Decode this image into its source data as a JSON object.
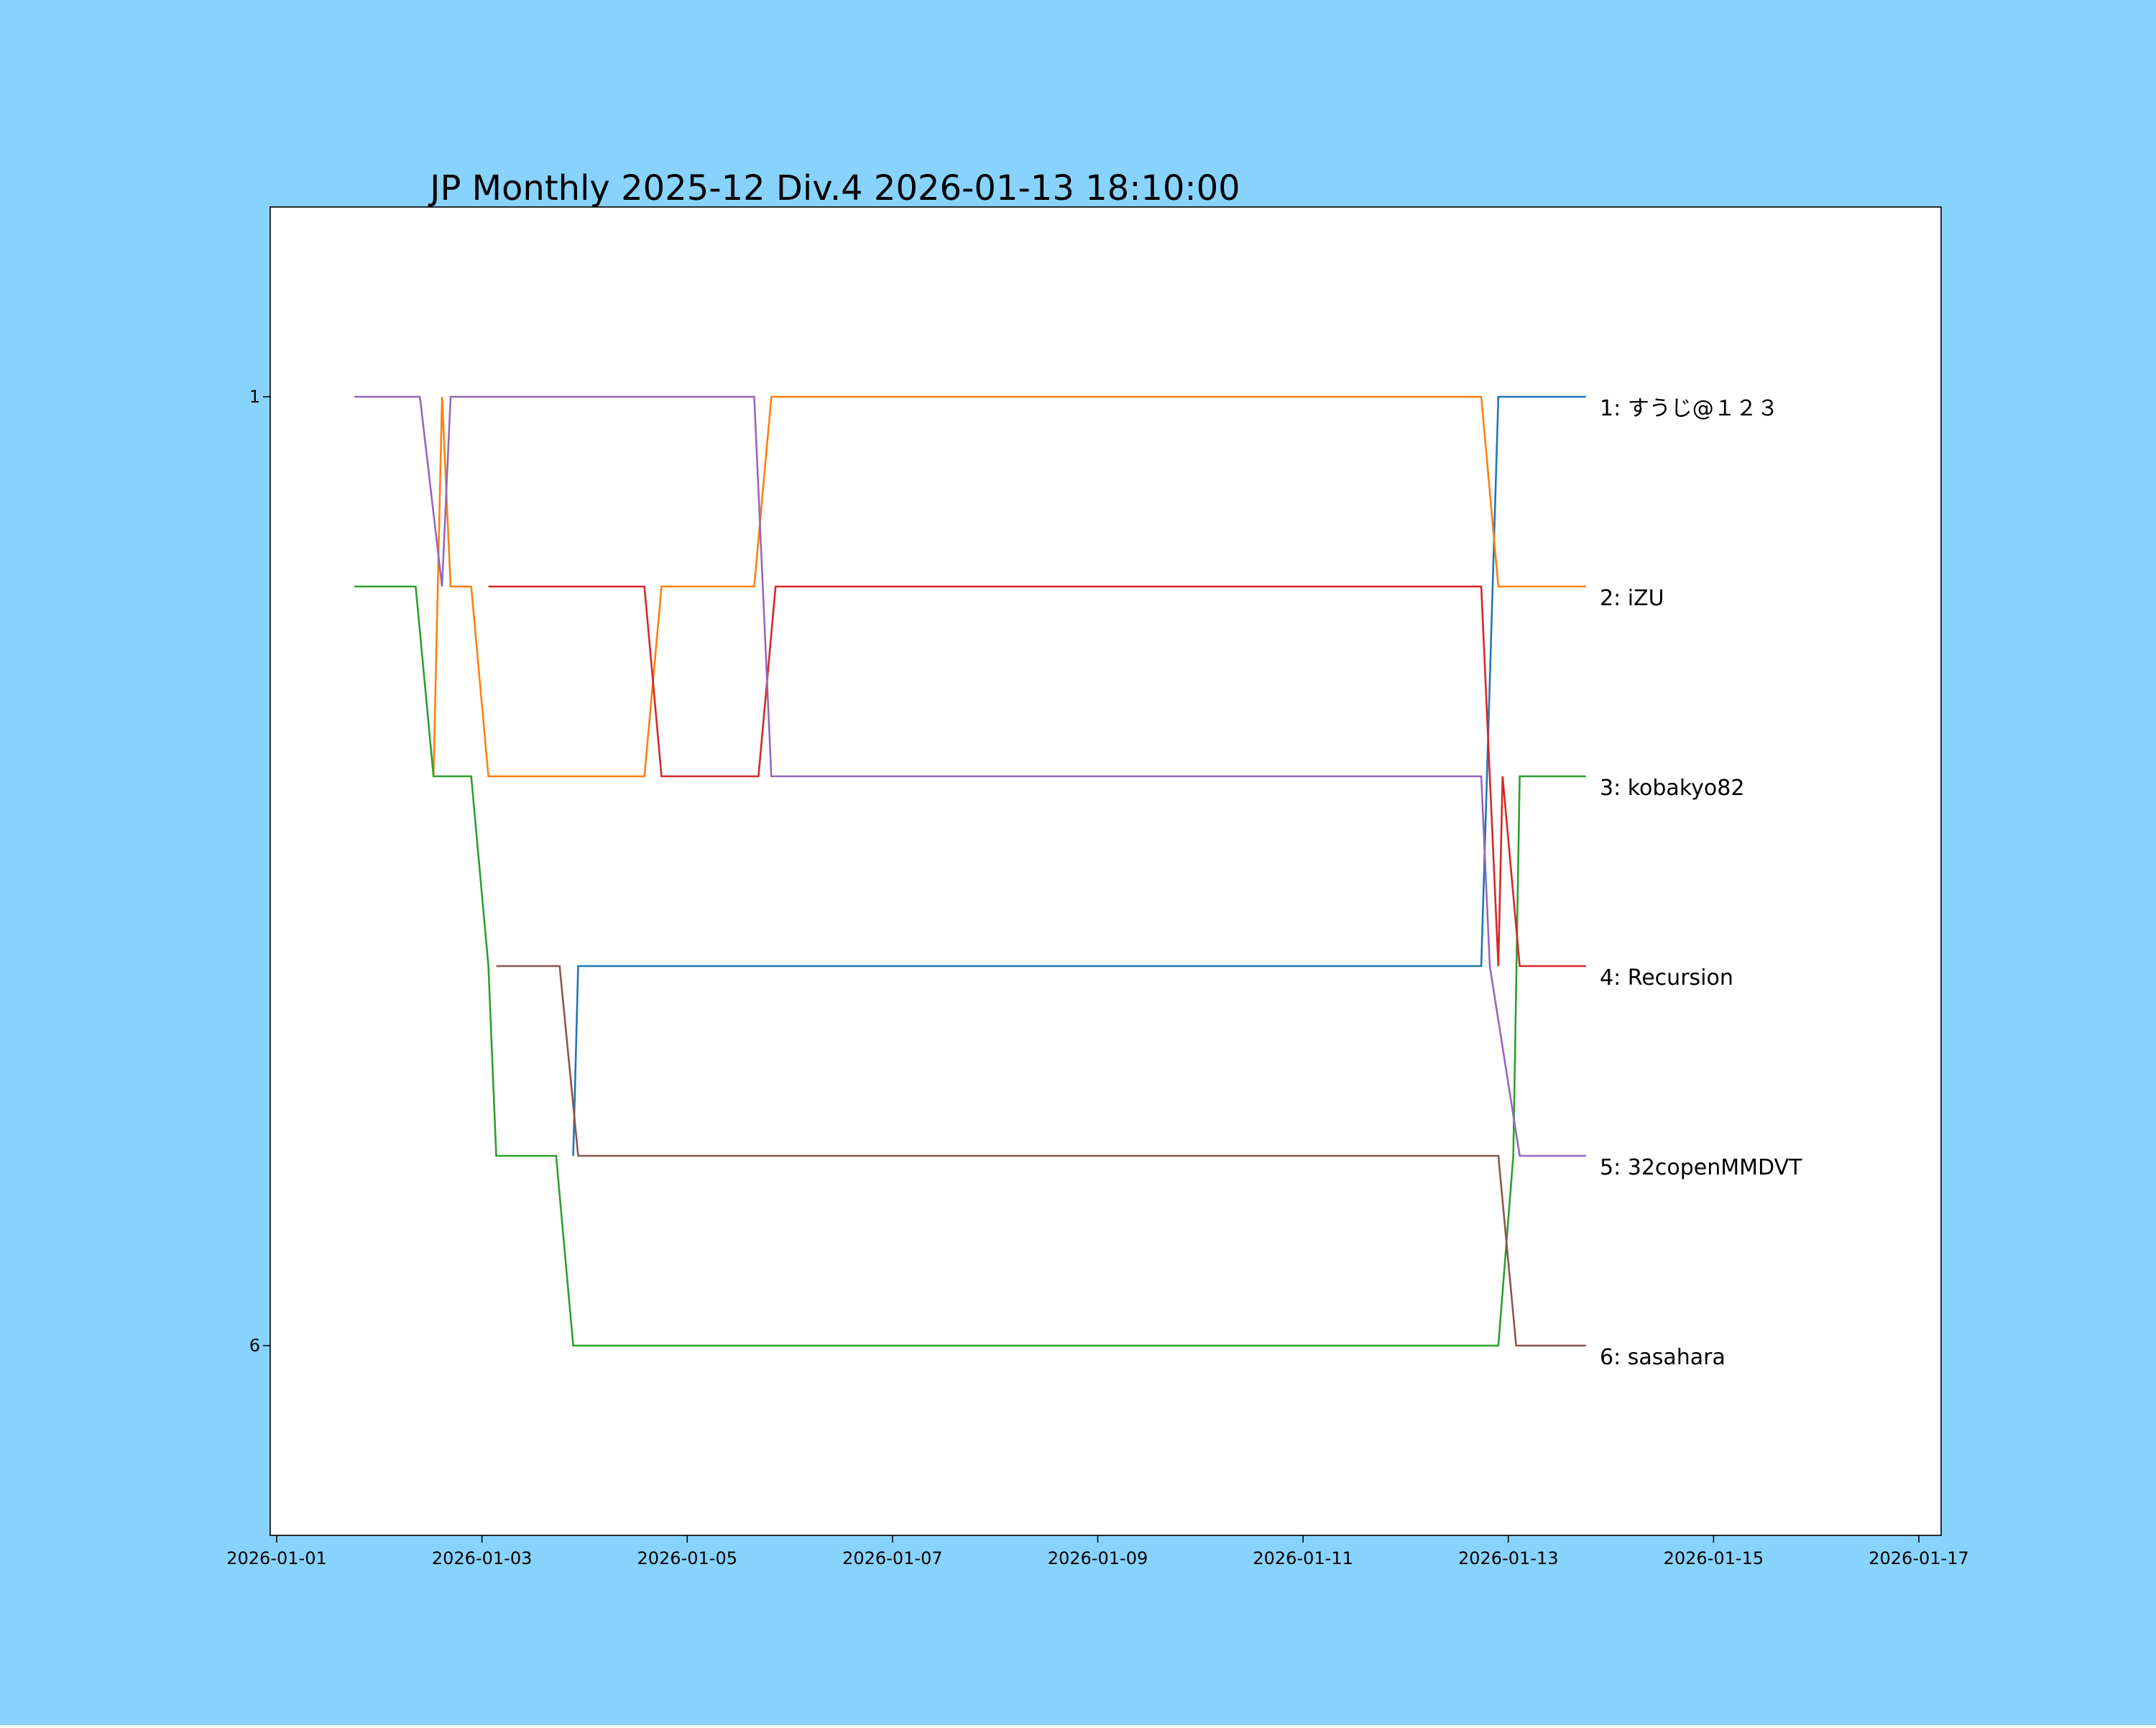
{
  "background_color": "#87d3fe",
  "chart_data": {
    "type": "line",
    "title": "JP Monthly 2025-12 Div.4 2026-01-13 18:10:00",
    "xlabel": "",
    "ylabel": "",
    "grid": false,
    "y_inverted": true,
    "xlim": [
      "2026-01-01 00:00",
      "2026-01-17 00:00"
    ],
    "ylim": [
      7,
      0
    ],
    "x_ticks": [
      "2026-01-01",
      "2026-01-03",
      "2026-01-05",
      "2026-01-07",
      "2026-01-09",
      "2026-01-11",
      "2026-01-13",
      "2026-01-15",
      "2026-01-17"
    ],
    "y_ticks": [
      "1",
      "6"
    ],
    "end_labels": [
      {
        "rank": 1,
        "text": "1: すうじ@１２３"
      },
      {
        "rank": 2,
        "text": "2: iZU"
      },
      {
        "rank": 3,
        "text": "3: kobakyo82"
      },
      {
        "rank": 4,
        "text": "4: Recursion"
      },
      {
        "rank": 5,
        "text": "5: 32copenMMDVT"
      },
      {
        "rank": 6,
        "text": "6: sasahara"
      }
    ],
    "series": [
      {
        "color": "#1f77b4",
        "points": [
          [
            "2026-01-03 21:20",
            5
          ],
          [
            "2026-01-03 22:30",
            4
          ],
          [
            "2026-01-12 17:40",
            4
          ],
          [
            "2026-01-12 21:40",
            1
          ],
          [
            "2026-01-13 18:10",
            1
          ]
        ]
      },
      {
        "color": "#ff7f0e",
        "points": [
          [
            "2026-01-02 12:40",
            3
          ],
          [
            "2026-01-02 14:40",
            1
          ],
          [
            "2026-01-02 16:40",
            2
          ],
          [
            "2026-01-02 21:30",
            2
          ],
          [
            "2026-01-03 01:30",
            3
          ],
          [
            "2026-01-04 14:00",
            3
          ],
          [
            "2026-01-04 18:00",
            2
          ],
          [
            "2026-01-05 15:40",
            2
          ],
          [
            "2026-01-05 19:40",
            1
          ],
          [
            "2026-01-12 17:40",
            1
          ],
          [
            "2026-01-12 21:40",
            2
          ],
          [
            "2026-01-13 18:10",
            2
          ]
        ]
      },
      {
        "color": "#2ca02c",
        "points": [
          [
            "2026-01-01 18:10",
            2
          ],
          [
            "2026-01-02 08:30",
            2
          ],
          [
            "2026-01-02 12:40",
            3
          ],
          [
            "2026-01-02 21:30",
            3
          ],
          [
            "2026-01-03 01:30",
            4
          ],
          [
            "2026-01-03 03:20",
            5
          ],
          [
            "2026-01-03 17:20",
            5
          ],
          [
            "2026-01-03 21:20",
            6
          ],
          [
            "2026-01-12 21:40",
            6
          ],
          [
            "2026-01-13 01:10",
            5
          ],
          [
            "2026-01-13 02:40",
            3
          ],
          [
            "2026-01-13 18:10",
            3
          ]
        ]
      },
      {
        "color": "#d62728",
        "points": [
          [
            "2026-01-03 01:30",
            2
          ],
          [
            "2026-01-04 14:00",
            2
          ],
          [
            "2026-01-04 18:00",
            3
          ],
          [
            "2026-01-05 16:40",
            3
          ],
          [
            "2026-01-05 20:40",
            2
          ],
          [
            "2026-01-12 17:40",
            2
          ],
          [
            "2026-01-12 21:40",
            4
          ],
          [
            "2026-01-12 22:40",
            3
          ],
          [
            "2026-01-13 02:40",
            4
          ],
          [
            "2026-01-13 18:10",
            4
          ]
        ]
      },
      {
        "color": "#9467bd",
        "points": [
          [
            "2026-01-01 18:10",
            1
          ],
          [
            "2026-01-02 09:30",
            1
          ],
          [
            "2026-01-02 14:40",
            2
          ],
          [
            "2026-01-02 16:40",
            1
          ],
          [
            "2026-01-05 15:40",
            1
          ],
          [
            "2026-01-05 19:40",
            3
          ],
          [
            "2026-01-12 17:40",
            3
          ],
          [
            "2026-01-12 19:40",
            4
          ],
          [
            "2026-01-13 02:40",
            5
          ],
          [
            "2026-01-13 18:10",
            5
          ]
        ]
      },
      {
        "color": "#8c564b",
        "points": [
          [
            "2026-01-03 03:20",
            4
          ],
          [
            "2026-01-03 18:10",
            4
          ],
          [
            "2026-01-03 22:30",
            5
          ],
          [
            "2026-01-12 21:40",
            5
          ],
          [
            "2026-01-13 01:50",
            6
          ],
          [
            "2026-01-13 18:10",
            6
          ]
        ]
      }
    ]
  }
}
